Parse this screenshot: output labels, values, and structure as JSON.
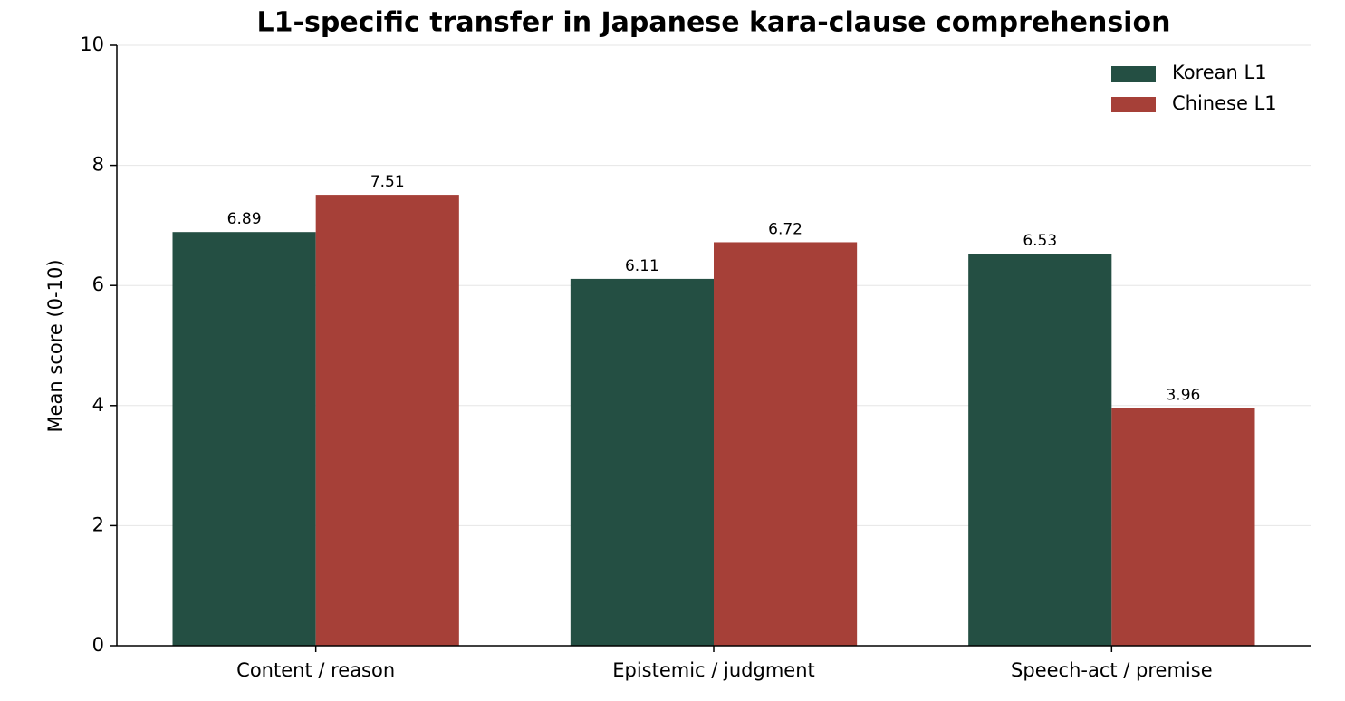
{
  "chart_data": {
    "type": "bar",
    "title": "L1-specific transfer in Japanese kara-clause comprehension",
    "y_label": "Mean score (0-10)",
    "categories": [
      "Content / reason",
      "Epistemic / judgment",
      "Speech-act / premise"
    ],
    "series": [
      {
        "name": "Korean L1",
        "color": "#244f43",
        "values": [
          6.89,
          6.11,
          6.53
        ]
      },
      {
        "name": "Chinese L1",
        "color": "#a64038",
        "values": [
          7.51,
          6.72,
          3.96
        ]
      }
    ],
    "ylim": [
      0,
      10
    ],
    "yticks": [
      0,
      2,
      4,
      6,
      8,
      10
    ],
    "grid": true,
    "legend": "upper right"
  }
}
